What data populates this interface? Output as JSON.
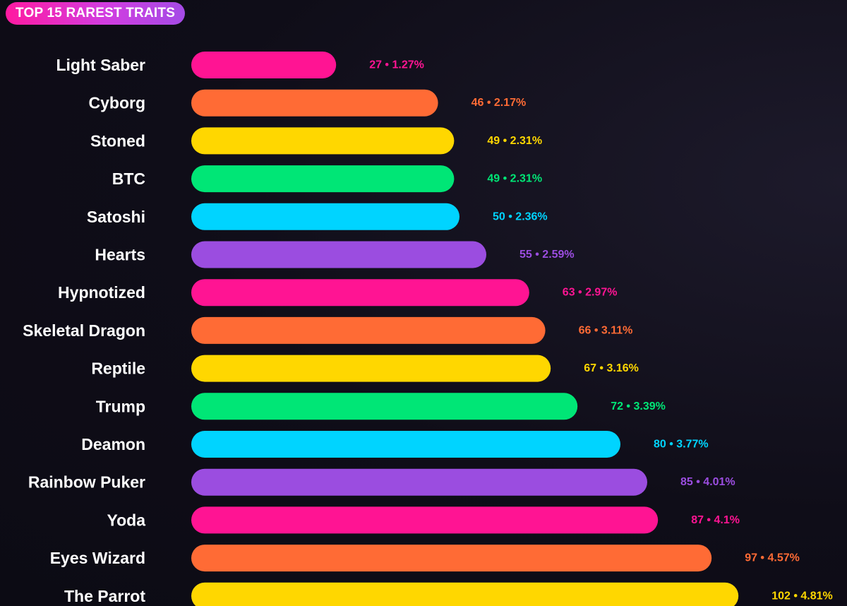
{
  "header": {
    "title": "TOP 15 RAREST TRAITS"
  },
  "colors": {
    "background": "#0f0d18",
    "palette": [
      "#ff1493",
      "#ff6b35",
      "#ffd700",
      "#00e676",
      "#00d4ff",
      "#9b4de0"
    ]
  },
  "chart_data": {
    "type": "bar",
    "orientation": "horizontal",
    "title": "TOP 15 RAREST TRAITS",
    "categories": [
      "Light Saber",
      "Cyborg",
      "Stoned",
      "BTC",
      "Satoshi",
      "Hearts",
      "Hypnotized",
      "Skeletal Dragon",
      "Reptile",
      "Trump",
      "Deamon",
      "Rainbow Puker",
      "Yoda",
      "Eyes Wizard",
      "The Parrot"
    ],
    "values": [
      27,
      46,
      49,
      49,
      50,
      55,
      63,
      66,
      67,
      72,
      80,
      85,
      87,
      97,
      102
    ],
    "percentages": [
      "1.27%",
      "2.17%",
      "2.31%",
      "2.31%",
      "2.36%",
      "2.59%",
      "2.97%",
      "3.11%",
      "3.16%",
      "3.39%",
      "3.77%",
      "4.01%",
      "4.1%",
      "4.57%",
      "4.81%"
    ],
    "data_labels": [
      "27 • 1.27%",
      "46 • 2.17%",
      "49 • 2.31%",
      "49 • 2.31%",
      "50 • 2.36%",
      "55 • 2.59%",
      "63 • 2.97%",
      "66 • 3.11%",
      "67 • 3.16%",
      "72 • 3.39%",
      "80 • 3.77%",
      "85 • 4.01%",
      "87 • 4.1%",
      "97 • 4.57%",
      "102 • 4.81%"
    ],
    "bar_colors": [
      "#ff1493",
      "#ff6b35",
      "#ffd700",
      "#00e676",
      "#00d4ff",
      "#9b4de0",
      "#ff1493",
      "#ff6b35",
      "#ffd700",
      "#00e676",
      "#00d4ff",
      "#9b4de0",
      "#ff1493",
      "#ff6b35",
      "#ffd700"
    ],
    "grid": false,
    "legend": "none"
  }
}
